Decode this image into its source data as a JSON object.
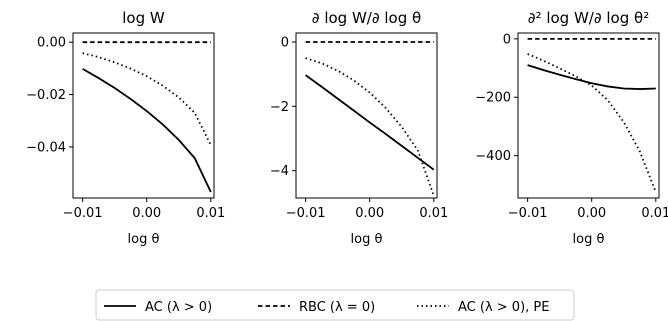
{
  "chart_data": [
    {
      "type": "line",
      "title": "log W",
      "xlabel": "log θ",
      "ylabel": "",
      "xlim": [
        -0.0115,
        0.0105
      ],
      "ylim": [
        -0.0595,
        0.0035
      ],
      "xticks": [
        -0.01,
        0.0,
        0.01
      ],
      "xtick_labels": [
        "−0.01",
        "0.00",
        "0.01"
      ],
      "yticks": [
        0.0,
        -0.02,
        -0.04
      ],
      "ytick_labels": [
        "0.00",
        "−0.02",
        "−0.04"
      ],
      "grid": false,
      "series": [
        {
          "name": "AC (λ > 0)",
          "style": "solid",
          "x": [
            -0.01,
            -0.0075,
            -0.005,
            -0.0025,
            0.0,
            0.0025,
            0.005,
            0.0075,
            0.01
          ],
          "y": [
            -0.0102,
            -0.0137,
            -0.0175,
            -0.0217,
            -0.0263,
            -0.0314,
            -0.0373,
            -0.0443,
            -0.0572
          ]
        },
        {
          "name": "RBC (λ = 0)",
          "style": "dashed",
          "x": [
            -0.01,
            0.01
          ],
          "y": [
            0.0,
            0.0
          ]
        },
        {
          "name": "AC (λ > 0), PE",
          "style": "dotted",
          "x": [
            -0.01,
            -0.0075,
            -0.005,
            -0.0025,
            0.0,
            0.0025,
            0.005,
            0.0075,
            0.01
          ],
          "y": [
            -0.0042,
            -0.0057,
            -0.0077,
            -0.0101,
            -0.013,
            -0.0166,
            -0.0211,
            -0.027,
            -0.0393
          ]
        }
      ]
    },
    {
      "type": "line",
      "title": "∂ log W/∂ log θ",
      "xlabel": "log θ",
      "ylabel": "",
      "xlim": [
        -0.0115,
        0.0105
      ],
      "ylim": [
        -4.85,
        0.28
      ],
      "xticks": [
        -0.01,
        0.0,
        0.01
      ],
      "xtick_labels": [
        "−0.01",
        "0.00",
        "0.01"
      ],
      "yticks": [
        0,
        -2,
        -4
      ],
      "ytick_labels": [
        "0",
        "−2",
        "−4"
      ],
      "grid": false,
      "series": [
        {
          "name": "AC (λ > 0)",
          "style": "solid",
          "x": [
            -0.01,
            -0.0075,
            -0.005,
            -0.0025,
            0.0,
            0.0025,
            0.005,
            0.0075,
            0.01
          ],
          "y": [
            -1.03,
            -1.39,
            -1.76,
            -2.13,
            -2.5,
            -2.86,
            -3.23,
            -3.6,
            -3.97
          ]
        },
        {
          "name": "RBC (λ = 0)",
          "style": "dashed",
          "x": [
            -0.01,
            0.01
          ],
          "y": [
            0.0,
            0.0
          ]
        },
        {
          "name": "AC (λ > 0), PE",
          "style": "dotted",
          "x": [
            -0.01,
            -0.0075,
            -0.005,
            -0.0025,
            0.0,
            0.0025,
            0.005,
            0.0075,
            0.01
          ],
          "y": [
            -0.5,
            -0.66,
            -0.89,
            -1.19,
            -1.57,
            -2.05,
            -2.64,
            -3.37,
            -4.78
          ]
        }
      ]
    },
    {
      "type": "line",
      "title": "∂² log W/∂ log θ²",
      "xlabel": "log θ",
      "ylabel": "",
      "xlim": [
        -0.0115,
        0.0105
      ],
      "ylim": [
        -545,
        20
      ],
      "xticks": [
        -0.01,
        0.0,
        0.01
      ],
      "xtick_labels": [
        "−0.01",
        "0.00",
        "0.01"
      ],
      "yticks": [
        0,
        -200,
        -400
      ],
      "ytick_labels": [
        "0",
        "−200",
        "−400"
      ],
      "grid": false,
      "series": [
        {
          "name": "AC (λ > 0)",
          "style": "solid",
          "x": [
            -0.01,
            -0.0075,
            -0.005,
            -0.0025,
            0.0,
            0.0025,
            0.005,
            0.0075,
            0.01
          ],
          "y": [
            -90,
            -107,
            -123,
            -138,
            -152,
            -163,
            -170,
            -172,
            -170
          ]
        },
        {
          "name": "RBC (λ = 0)",
          "style": "dashed",
          "x": [
            -0.01,
            0.01
          ],
          "y": [
            0.0,
            0.0
          ]
        },
        {
          "name": "AC (λ > 0), PE",
          "style": "dotted",
          "x": [
            -0.01,
            -0.0075,
            -0.005,
            -0.0025,
            0.0,
            0.0025,
            0.005,
            0.0075,
            0.01
          ],
          "y": [
            -52,
            -75,
            -101,
            -128,
            -160,
            -210,
            -285,
            -385,
            -525
          ]
        }
      ]
    }
  ],
  "legend": {
    "placement": "bottom-center",
    "entries": [
      {
        "label": "AC (λ > 0)",
        "style": "solid"
      },
      {
        "label": "RBC (λ = 0)",
        "style": "dashed"
      },
      {
        "label": "AC (λ > 0), PE",
        "style": "dotted"
      }
    ]
  },
  "colors": {
    "line": "#000000",
    "frame": "#000000",
    "legend_border": "#cccccc",
    "background": "#ffffff"
  }
}
